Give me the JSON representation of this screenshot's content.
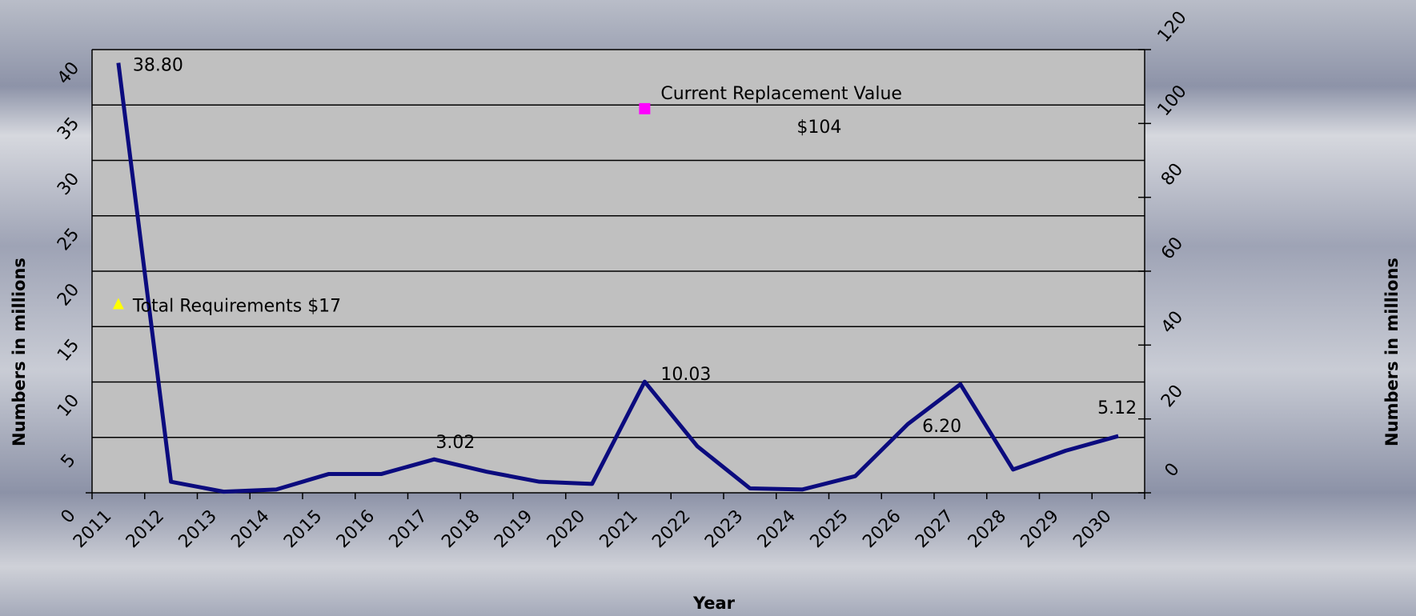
{
  "chart_data": {
    "type": "line",
    "categories": [
      "2011",
      "2012",
      "2013",
      "2014",
      "2015",
      "2016",
      "2017",
      "2018",
      "2019",
      "2020",
      "2021",
      "2022",
      "2023",
      "2024",
      "2025",
      "2026",
      "2027",
      "2028",
      "2029",
      "2030"
    ],
    "series": [
      {
        "color": "#0b0b7e",
        "marker": "none",
        "values": [
          38.8,
          1.0,
          0.1,
          0.3,
          1.7,
          1.7,
          3.02,
          1.9,
          1.0,
          0.8,
          10.03,
          4.2,
          0.4,
          0.3,
          1.5,
          6.2,
          9.8,
          2.1,
          3.8,
          5.12
        ],
        "value_labels": [
          "38.80",
          null,
          null,
          null,
          null,
          null,
          "3.02",
          null,
          null,
          null,
          "10.03",
          null,
          null,
          null,
          null,
          "6.20",
          null,
          null,
          null,
          "5.12"
        ]
      },
      {
        "color": "#ffff00",
        "marker": "triangle",
        "values": [
          17,
          null,
          null,
          null,
          null,
          null,
          null,
          null,
          null,
          null,
          null,
          null,
          null,
          null,
          null,
          null,
          null,
          null,
          null,
          null
        ],
        "value_labels": [
          "Total Requirements $17",
          null,
          null,
          null,
          null,
          null,
          null,
          null,
          null,
          null,
          null,
          null,
          null,
          null,
          null,
          null,
          null,
          null,
          null,
          null
        ]
      },
      {
        "color": "#ff00ff",
        "marker": "square",
        "axis": "y2",
        "annotation": "Current Replacement Value",
        "values": [
          null,
          null,
          null,
          null,
          null,
          null,
          null,
          null,
          null,
          null,
          104,
          null,
          null,
          null,
          null,
          null,
          null,
          null,
          null,
          null
        ],
        "value_labels": [
          null,
          null,
          null,
          null,
          null,
          null,
          null,
          null,
          null,
          null,
          "$104",
          null,
          null,
          null,
          null,
          null,
          null,
          null,
          null,
          null
        ]
      }
    ],
    "xlabel": "Year",
    "ylabel": "Numbers in millions",
    "y2label": "Numbers in millions",
    "ylim": [
      0,
      40
    ],
    "yticks": [
      0,
      5,
      10,
      15,
      20,
      25,
      30,
      35,
      40
    ],
    "y2lim": [
      0,
      120
    ],
    "y2ticks": [
      0,
      20,
      40,
      60,
      80,
      100,
      120
    ],
    "grid": true
  }
}
